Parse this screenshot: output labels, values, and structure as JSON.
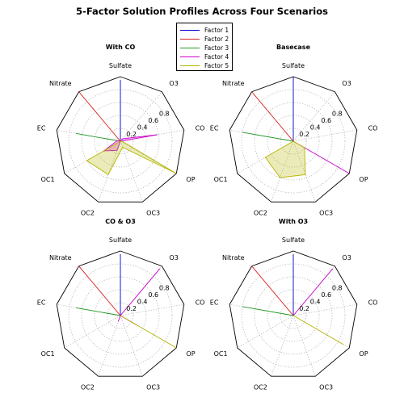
{
  "title": "5-Factor Solution Profiles Across Four Scenarios",
  "chart_data": {
    "type": "radar",
    "categories": [
      "Sulfate",
      "O3",
      "CO",
      "OP",
      "OC3",
      "OC2",
      "OC1",
      "EC",
      "Nitrate"
    ],
    "radial_ticks": [
      "0.2",
      "0.4",
      "0.6",
      "0.8"
    ],
    "rlim": [
      0,
      1
    ],
    "grid": true,
    "legend_placement": "top-center",
    "series_meta": [
      {
        "name": "Factor 1",
        "color": "#0000cc"
      },
      {
        "name": "Factor 2",
        "color": "#dd2222"
      },
      {
        "name": "Factor 3",
        "color": "#229922"
      },
      {
        "name": "Factor 4",
        "color": "#cc00cc"
      },
      {
        "name": "Factor 5",
        "color": "#b5b500"
      }
    ],
    "subplots": [
      {
        "title": "With CO",
        "series": [
          {
            "name": "Factor 1",
            "values": [
              0.95,
              0.0,
              0.0,
              0.0,
              0.0,
              0.0,
              0.0,
              0.0,
              0.0
            ]
          },
          {
            "name": "Factor 2",
            "values": [
              0.0,
              0.0,
              0.0,
              0.0,
              0.0,
              0.0,
              0.0,
              0.0,
              1.0
            ]
          },
          {
            "name": "Factor 3",
            "values": [
              0.0,
              0.0,
              0.0,
              0.0,
              0.0,
              0.0,
              0.0,
              0.7,
              0.0
            ]
          },
          {
            "name": "Factor 4",
            "values": [
              0.0,
              0.05,
              0.58,
              0.0,
              0.0,
              0.15,
              0.3,
              0.05,
              0.0
            ]
          },
          {
            "name": "Factor 5",
            "values": [
              0.0,
              0.0,
              0.02,
              1.0,
              0.1,
              0.55,
              0.6,
              0.0,
              0.0
            ]
          }
        ]
      },
      {
        "title": "Basecase",
        "series": [
          {
            "name": "Factor 1",
            "values": [
              1.0,
              0.0,
              0.0,
              0.0,
              0.0,
              0.0,
              0.0,
              0.0,
              0.0
            ]
          },
          {
            "name": "Factor 2",
            "values": [
              0.0,
              0.0,
              0.0,
              0.0,
              0.0,
              0.0,
              0.0,
              0.0,
              1.0
            ]
          },
          {
            "name": "Factor 3",
            "values": [
              0.0,
              0.0,
              0.0,
              0.0,
              0.0,
              0.0,
              0.0,
              0.8,
              0.0
            ]
          },
          {
            "name": "Factor 4",
            "values": [
              0.0,
              0.0,
              0.0,
              1.0,
              0.0,
              0.0,
              0.0,
              0.0,
              0.0
            ]
          },
          {
            "name": "Factor 5",
            "values": [
              0.0,
              0.0,
              0.0,
              0.2,
              0.55,
              0.6,
              0.5,
              0.0,
              0.0
            ]
          }
        ]
      },
      {
        "title": "CO & O3",
        "series": [
          {
            "name": "Factor 1",
            "values": [
              0.95,
              0.0,
              0.0,
              0.0,
              0.0,
              0.0,
              0.0,
              0.0,
              0.0
            ]
          },
          {
            "name": "Factor 2",
            "values": [
              0.0,
              0.0,
              0.0,
              0.0,
              0.0,
              0.0,
              0.0,
              0.0,
              1.0
            ]
          },
          {
            "name": "Factor 3",
            "values": [
              0.0,
              0.0,
              0.0,
              0.0,
              0.0,
              0.0,
              0.0,
              0.7,
              0.0
            ]
          },
          {
            "name": "Factor 4",
            "values": [
              0.0,
              0.95,
              0.0,
              0.3,
              0.0,
              0.1,
              0.0,
              0.0,
              0.0
            ]
          },
          {
            "name": "Factor 5",
            "values": [
              0.0,
              0.0,
              0.0,
              1.0,
              0.0,
              0.0,
              0.0,
              0.0,
              0.0
            ]
          }
        ]
      },
      {
        "title": "With O3",
        "series": [
          {
            "name": "Factor 1",
            "values": [
              0.95,
              0.0,
              0.0,
              0.0,
              0.0,
              0.0,
              0.0,
              0.0,
              0.0
            ]
          },
          {
            "name": "Factor 2",
            "values": [
              0.0,
              0.0,
              0.0,
              0.0,
              0.0,
              0.0,
              0.0,
              0.0,
              1.0
            ]
          },
          {
            "name": "Factor 3",
            "values": [
              0.0,
              0.0,
              0.0,
              0.0,
              0.0,
              0.0,
              0.0,
              0.8,
              0.0
            ]
          },
          {
            "name": "Factor 4",
            "values": [
              0.0,
              0.95,
              0.0,
              0.0,
              0.0,
              0.0,
              0.0,
              0.0,
              0.0
            ]
          },
          {
            "name": "Factor 5",
            "values": [
              0.0,
              0.0,
              0.0,
              0.9,
              0.0,
              0.0,
              0.0,
              0.0,
              0.0
            ]
          }
        ]
      }
    ]
  }
}
